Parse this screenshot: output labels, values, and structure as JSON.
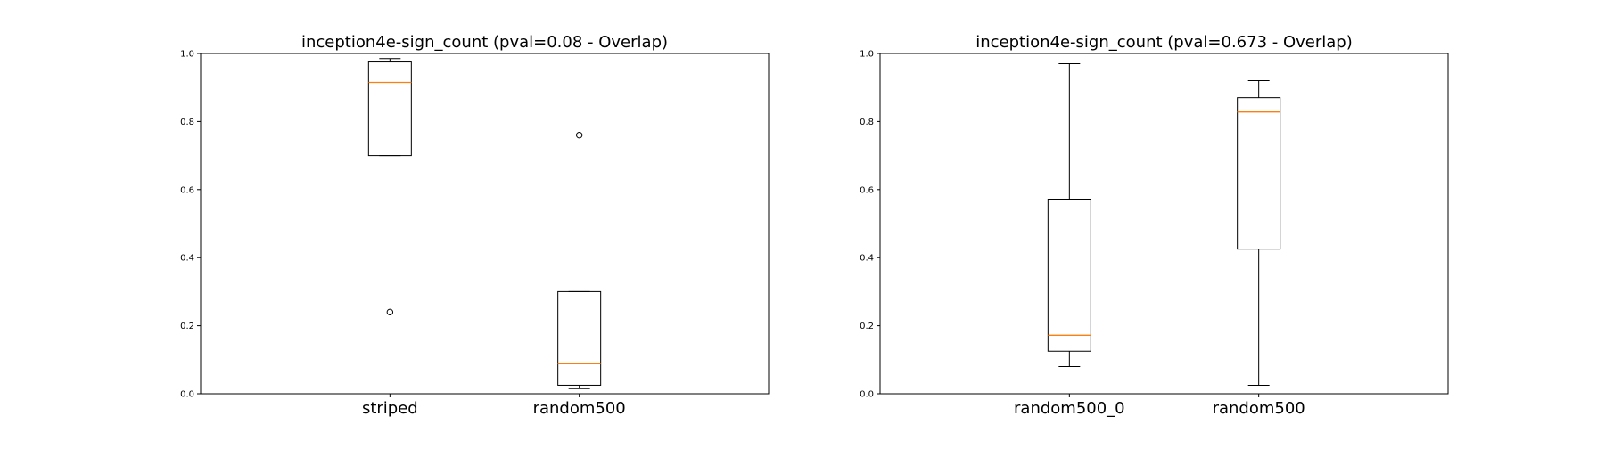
{
  "chart_data": [
    {
      "type": "box",
      "title": "inception4e-sign_count (pval=0.08 - Overlap)",
      "xlabel": "",
      "ylabel": "",
      "ylim": [
        0,
        1
      ],
      "yticks": [
        "0.0",
        "0.2",
        "0.4",
        "0.6",
        "0.8",
        "1.0"
      ],
      "grid": false,
      "categories": [
        "striped",
        "random500"
      ],
      "boxes": [
        {
          "label": "striped",
          "whisker_low": 0.7,
          "q1": 0.7,
          "median": 0.915,
          "q3": 0.975,
          "whisker_high": 0.985,
          "outliers": [
            0.24
          ]
        },
        {
          "label": "random500",
          "whisker_low": 0.015,
          "q1": 0.025,
          "median": 0.088,
          "q3": 0.3,
          "whisker_high": 0.3,
          "outliers": [
            0.76
          ]
        }
      ]
    },
    {
      "type": "box",
      "title": "inception4e-sign_count (pval=0.673 - Overlap)",
      "xlabel": "",
      "ylabel": "",
      "ylim": [
        0,
        1
      ],
      "yticks": [
        "0.0",
        "0.2",
        "0.4",
        "0.6",
        "0.8",
        "1.0"
      ],
      "grid": false,
      "categories": [
        "random500_0",
        "random500"
      ],
      "boxes": [
        {
          "label": "random500_0",
          "whisker_low": 0.08,
          "q1": 0.125,
          "median": 0.172,
          "q3": 0.572,
          "whisker_high": 0.97,
          "outliers": []
        },
        {
          "label": "random500",
          "whisker_low": 0.025,
          "q1": 0.425,
          "median": 0.828,
          "q3": 0.87,
          "whisker_high": 0.92,
          "outliers": []
        }
      ]
    }
  ],
  "colors": {
    "box": "#000000",
    "median": "#ff7f0e",
    "axes": "#000000"
  }
}
